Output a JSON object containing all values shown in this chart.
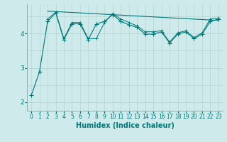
{
  "bg_color": "#ceeaea",
  "grid_color": "#b8d4d4",
  "line_color": "#007878",
  "xlabel": "Humidex (Indice chaleur)",
  "xlim": [
    -0.5,
    23.5
  ],
  "ylim": [
    1.75,
    4.85
  ],
  "yticks": [
    2,
    3,
    4
  ],
  "xticks": [
    0,
    1,
    2,
    3,
    4,
    5,
    6,
    7,
    8,
    9,
    10,
    11,
    12,
    13,
    14,
    15,
    16,
    17,
    18,
    19,
    20,
    21,
    22,
    23
  ],
  "line1_x": [
    0,
    1,
    2,
    3,
    4,
    5,
    6,
    7,
    8,
    9,
    10,
    11,
    12,
    13,
    14,
    15,
    16,
    17,
    18,
    19,
    20,
    21,
    22,
    23
  ],
  "line1_y": [
    2.2,
    2.88,
    4.35,
    4.6,
    3.82,
    4.28,
    4.28,
    3.82,
    4.28,
    4.35,
    4.55,
    4.35,
    4.25,
    4.18,
    3.98,
    3.98,
    4.05,
    3.72,
    3.98,
    4.05,
    3.85,
    3.98,
    4.35,
    4.42
  ],
  "line2_x": [
    2,
    3,
    4,
    5,
    6,
    7,
    8,
    9,
    10,
    11,
    12,
    13,
    14,
    15,
    16,
    17,
    18,
    19,
    20,
    21,
    22,
    23
  ],
  "line2_y": [
    4.42,
    4.62,
    3.85,
    4.32,
    4.32,
    3.85,
    3.85,
    4.32,
    4.58,
    4.42,
    4.32,
    4.22,
    4.05,
    4.05,
    4.08,
    3.75,
    4.02,
    4.08,
    3.88,
    4.02,
    4.42,
    4.45
  ],
  "trend_x": [
    2,
    23
  ],
  "trend_y": [
    4.65,
    4.38
  ]
}
